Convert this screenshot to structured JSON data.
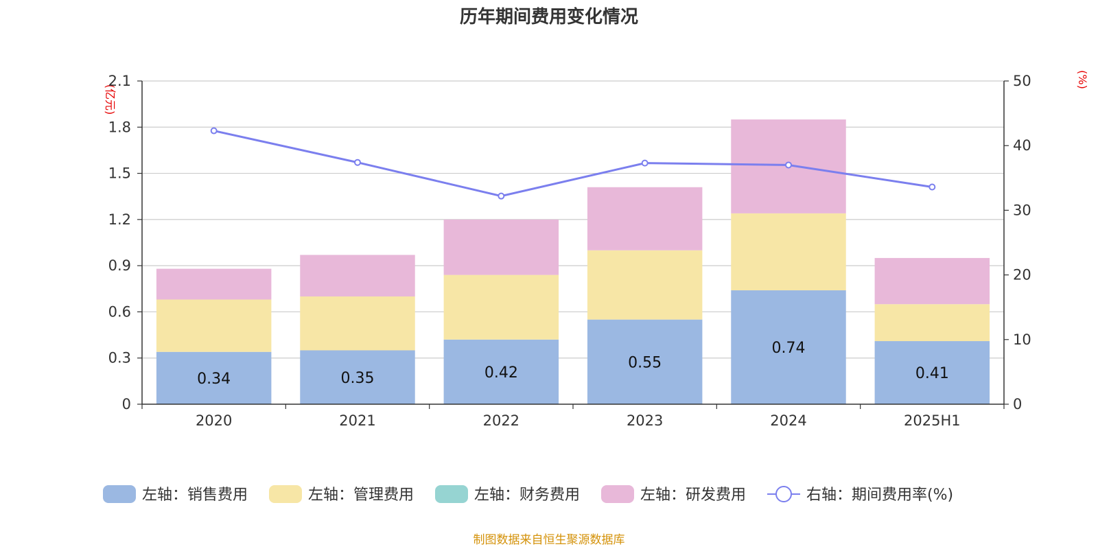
{
  "chart_data": {
    "type": "bar",
    "title": "历年期间费用变化情况",
    "categories": [
      "2020",
      "2021",
      "2022",
      "2023",
      "2024",
      "2025H1"
    ],
    "stacked": true,
    "left_axis": {
      "unit": "(亿元)",
      "ylim": [
        0,
        2.1
      ],
      "ticks": [
        "0",
        "0.3",
        "0.6",
        "0.9",
        "1.2",
        "1.5",
        "1.8",
        "2.1"
      ]
    },
    "right_axis": {
      "unit": "(%)",
      "ylim": [
        0,
        50
      ],
      "ticks": [
        "0",
        "10",
        "20",
        "30",
        "40",
        "50"
      ]
    },
    "series": [
      {
        "name": "左轴：销售费用",
        "type": "bar",
        "axis": "left",
        "color": "#9bb8e2",
        "values": [
          0.34,
          0.35,
          0.42,
          0.55,
          0.74,
          0.41
        ],
        "labels": [
          "0.34",
          "0.35",
          "0.42",
          "0.55",
          "0.74",
          "0.41"
        ]
      },
      {
        "name": "左轴：管理费用",
        "type": "bar",
        "axis": "left",
        "color": "#f7e6a6",
        "values": [
          0.34,
          0.35,
          0.42,
          0.45,
          0.5,
          0.24
        ]
      },
      {
        "name": "左轴：财务费用",
        "type": "bar",
        "axis": "left",
        "color": "#96d4d2",
        "values": [
          0.0,
          0.0,
          0.0,
          0.0,
          0.0,
          0.0
        ]
      },
      {
        "name": "左轴：研发费用",
        "type": "bar",
        "axis": "left",
        "color": "#e8b8d9",
        "values": [
          0.2,
          0.27,
          0.36,
          0.41,
          0.61,
          0.3
        ]
      },
      {
        "name": "右轴：期间费用率(%)",
        "type": "line",
        "axis": "right",
        "color": "#7b7fee",
        "values": [
          42.3,
          37.4,
          32.2,
          37.3,
          37.0,
          33.6
        ]
      }
    ],
    "grid": true,
    "legend_position": "bottom"
  },
  "source": "制图数据来自恒生聚源数据库"
}
